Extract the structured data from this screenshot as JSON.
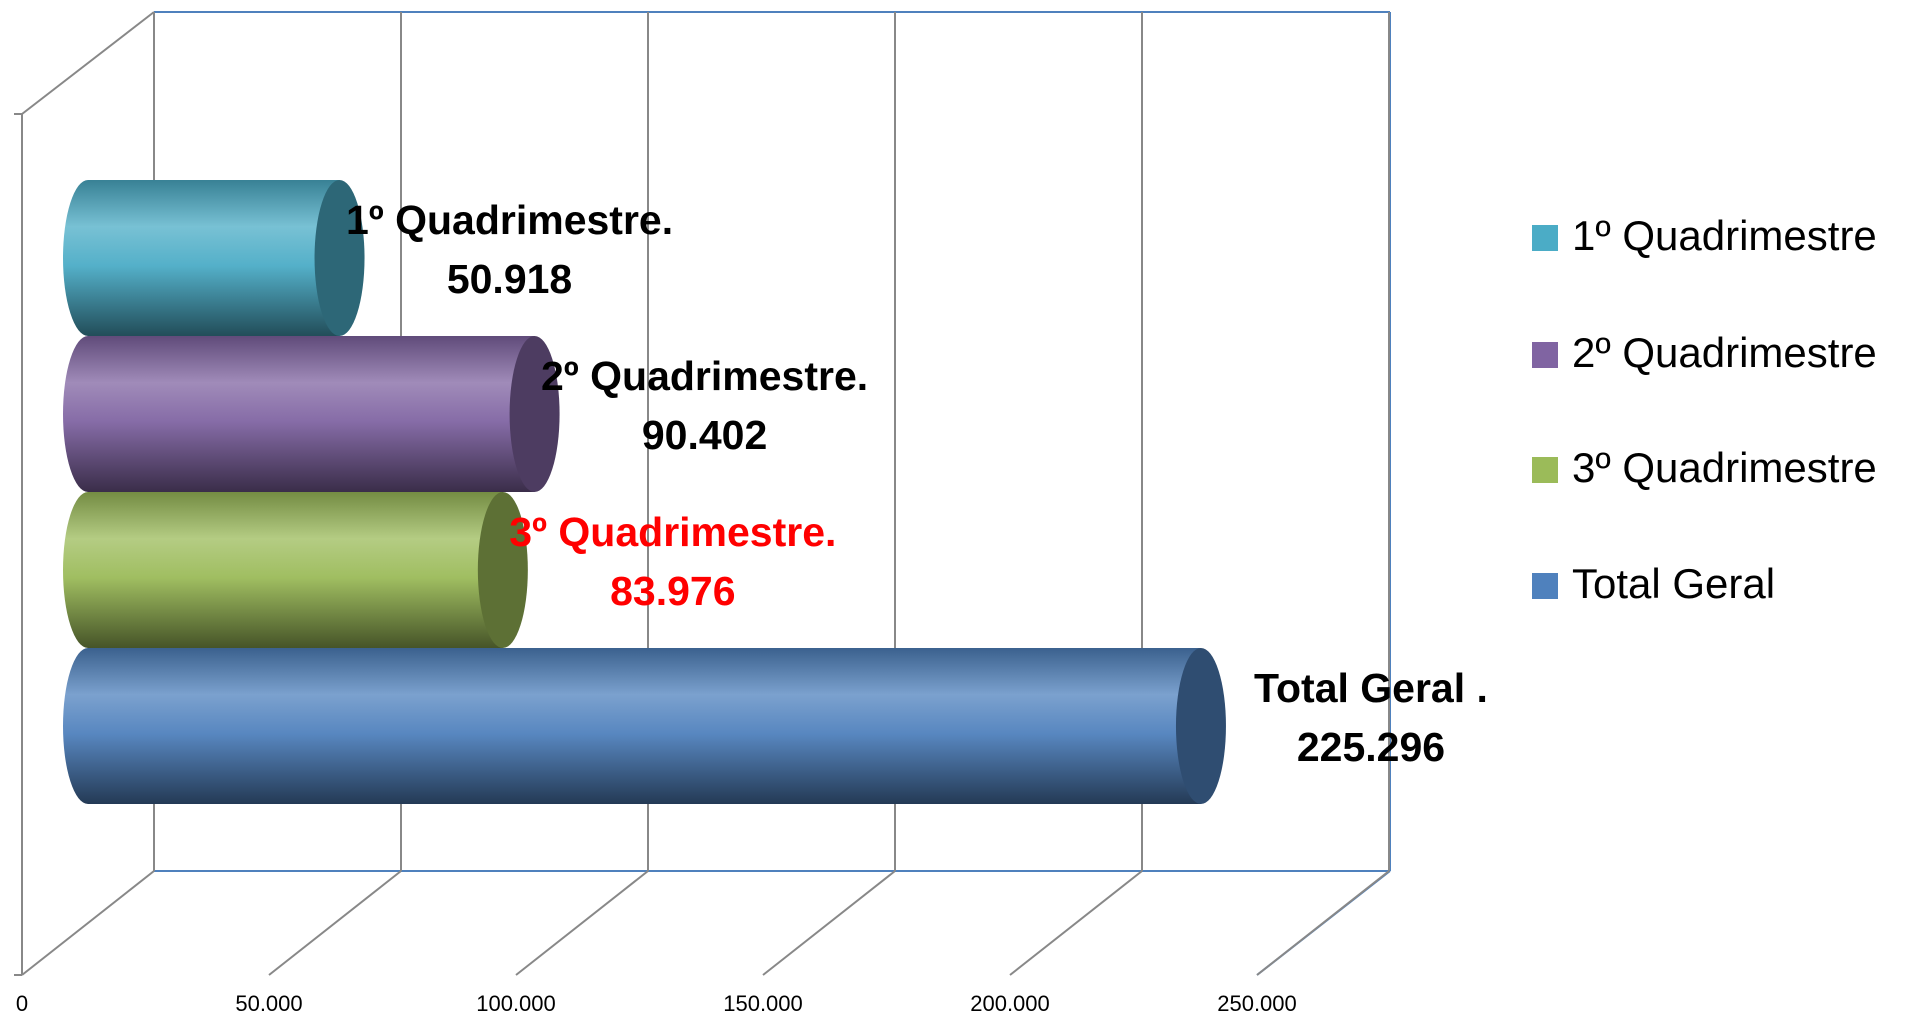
{
  "chart_data": {
    "type": "bar",
    "orientation": "horizontal",
    "style": "3d-cylinder",
    "categories": [
      null
    ],
    "series": [
      {
        "name": "1º Quadrimestre",
        "color": "#4bacc6",
        "values": [
          50918
        ],
        "value_labels": [
          "50.918"
        ],
        "data_label": "1º Quadrimestre.",
        "label_color": "#000000"
      },
      {
        "name": "2º Quadrimestre",
        "color": "#8064a2",
        "values": [
          90402
        ],
        "value_labels": [
          "90.402"
        ],
        "data_label": "2º Quadrimestre.",
        "label_color": "#000000"
      },
      {
        "name": "3º Quadrimestre",
        "color": "#9bbb59",
        "values": [
          83976
        ],
        "value_labels": [
          "83.976"
        ],
        "data_label": "3º Quadrimestre.",
        "label_color": "#ff0000"
      },
      {
        "name": "Total Geral",
        "color": "#4f81bd",
        "values": [
          225296
        ],
        "value_labels": [
          "225.296"
        ],
        "data_label": "Total Geral .",
        "label_color": "#000000"
      }
    ],
    "xlim": [
      0,
      250000
    ],
    "xticks": [
      0,
      {
        "value": 50000,
        "label": "50.000"
      },
      {
        "value": 100000,
        "label": "100.000"
      },
      {
        "value": 150000,
        "label": "150.000"
      },
      {
        "value": 200000,
        "label": "200.000"
      },
      {
        "value": 250000,
        "label": "250.000"
      }
    ],
    "grid": true,
    "legend": "right"
  }
}
